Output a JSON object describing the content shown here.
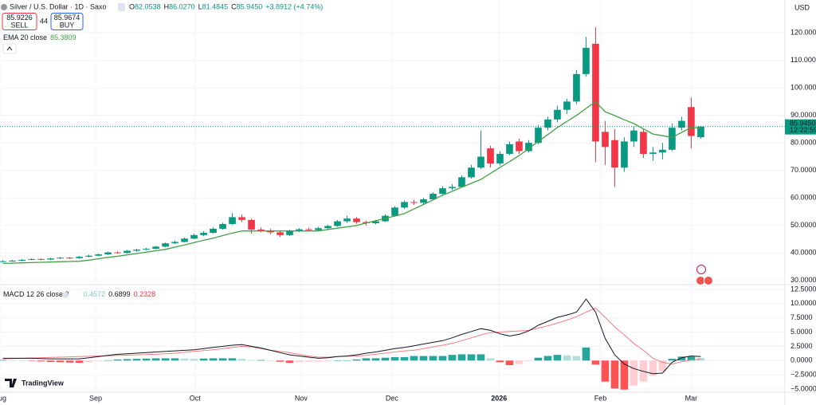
{
  "chart_data": [
    {
      "type": "candlestick",
      "title": "Silver / U.S. Dollar · 1D · Saxo",
      "ohlc_header": [
        "O",
        "82.0538",
        "H",
        "86.0270",
        "L",
        "81.4845",
        "C",
        "85.9450",
        "+3.8912 (+4.74%)"
      ],
      "sell": {
        "price": "85.9226",
        "label": "SELL"
      },
      "spread": "44",
      "buy": {
        "price": "85.9674",
        "label": "BUY"
      },
      "currency": "USD",
      "last_price_label": "85.9450",
      "countdown": "12:22:59",
      "up_color": "#089981",
      "down_color": "#f23645",
      "ylim": [
        28.5,
        131.9
      ],
      "yticks": [
        {
          "value": 30,
          "label": "30.0000"
        },
        {
          "value": 40,
          "label": "40.0000"
        },
        {
          "value": 50,
          "label": "50.0000"
        },
        {
          "value": 60,
          "label": "60.0000"
        },
        {
          "value": 70,
          "label": "70.0000"
        },
        {
          "value": 80,
          "label": "80.0000"
        },
        {
          "value": 90,
          "label": "90.0000"
        },
        {
          "value": 100,
          "label": "100.0000"
        },
        {
          "value": 110,
          "label": "110.0000"
        },
        {
          "value": 120,
          "label": "120.0000"
        }
      ],
      "grid": true,
      "open": [
        36.8,
        37.0,
        37.2,
        37.5,
        37.8,
        37.6,
        38.0,
        38.3,
        38.1,
        38.6,
        39.0,
        39.5,
        40.2,
        40.0,
        40.8,
        41.2,
        41.5,
        42.3,
        43.5,
        44.0,
        45.2,
        46.5,
        47.3,
        48.8,
        50.5,
        53.0,
        52.0,
        48.5,
        48.2,
        47.5,
        46.5,
        48.0,
        48.6,
        48.3,
        49.0,
        49.8,
        51.5,
        52.5,
        51.2,
        50.8,
        51.5,
        53.5,
        56.5,
        58.5,
        58.2,
        59.5,
        61.5,
        63.5,
        64.0,
        67.5,
        71.0,
        78.0,
        72.5,
        76.0,
        80.5,
        77.0,
        80.0,
        85.5,
        88.5,
        92.0,
        95.0,
        105.0,
        116.0,
        84.0,
        81.0,
        71.0,
        80.5,
        84.0,
        76.0,
        76.5,
        77.5,
        85.5,
        93.0,
        82.0538
      ],
      "high": [
        37.4,
        37.5,
        37.8,
        38.1,
        38.0,
        38.3,
        38.6,
        38.5,
        38.9,
        39.4,
        39.8,
        40.5,
        40.6,
        41.1,
        41.6,
        41.9,
        42.6,
        43.8,
        44.5,
        45.6,
        47.0,
        47.9,
        49.3,
        51.0,
        54.5,
        54.0,
        52.5,
        49.3,
        48.8,
        48.0,
        48.4,
        49.0,
        49.2,
        49.5,
        50.2,
        52.0,
        53.5,
        53.0,
        51.7,
        52.0,
        54.0,
        57.0,
        59.0,
        59.3,
        60.0,
        62.0,
        64.3,
        65.0,
        68.2,
        72.0,
        84.5,
        79.0,
        77.0,
        80.5,
        81.5,
        81.0,
        86.5,
        89.5,
        93.5,
        96.0,
        106.5,
        118.5,
        122.0,
        88.0,
        85.0,
        82.0,
        86.0,
        85.0,
        78.5,
        80.0,
        87.0,
        89.5,
        96.5,
        86.027
      ],
      "low": [
        36.6,
        36.8,
        37.0,
        37.3,
        37.3,
        37.4,
        37.8,
        37.8,
        37.9,
        38.4,
        38.8,
        39.3,
        39.7,
        39.8,
        40.5,
        41.0,
        41.3,
        42.0,
        43.2,
        43.8,
        45.0,
        46.1,
        47.0,
        48.5,
        50.2,
        51.2,
        47.0,
        47.5,
        46.8,
        45.8,
        46.2,
        47.6,
        47.8,
        48.0,
        48.7,
        49.5,
        51.0,
        50.6,
        50.0,
        50.4,
        51.2,
        53.2,
        56.0,
        57.5,
        57.8,
        59.2,
        61.0,
        62.8,
        63.7,
        67.0,
        70.5,
        71.0,
        71.8,
        75.5,
        76.0,
        76.5,
        79.5,
        84.5,
        87.5,
        90.5,
        94.0,
        104.0,
        73.0,
        72.0,
        64.0,
        69.5,
        78.5,
        74.5,
        73.5,
        74.0,
        77.0,
        84.5,
        78.0,
        81.4845
      ],
      "close": [
        37.0,
        37.2,
        37.5,
        37.8,
        37.6,
        38.0,
        38.3,
        38.1,
        38.6,
        39.0,
        39.5,
        40.2,
        40.0,
        40.8,
        41.2,
        41.5,
        42.3,
        43.5,
        44.0,
        45.2,
        46.5,
        47.3,
        48.8,
        50.5,
        53.0,
        52.0,
        48.5,
        48.2,
        47.5,
        46.5,
        48.0,
        48.6,
        48.3,
        49.0,
        49.8,
        51.5,
        52.5,
        51.2,
        50.8,
        51.5,
        53.5,
        56.5,
        58.5,
        58.2,
        59.5,
        61.5,
        63.5,
        64.0,
        67.5,
        71.0,
        75.0,
        72.5,
        76.0,
        79.5,
        77.0,
        80.0,
        85.5,
        88.5,
        92.0,
        95.0,
        105.0,
        114.5,
        80.5,
        78.5,
        71.0,
        80.5,
        84.5,
        76.0,
        76.5,
        77.5,
        85.5,
        88.0,
        82.5,
        85.945
      ],
      "ema": {
        "name": "EMA 20 close",
        "color": "#43a047",
        "values": [
          36.2,
          36.3,
          36.4,
          36.5,
          36.6,
          36.7,
          36.8,
          36.9,
          37.0,
          37.4,
          37.9,
          38.4,
          38.8,
          39.3,
          39.8,
          40.3,
          40.8,
          41.3,
          42.1,
          42.9,
          43.8,
          44.6,
          45.4,
          46.3,
          47.2,
          48.0,
          48.0,
          48.0,
          48.0,
          48.0,
          48.0,
          48.0,
          48.0,
          48.0,
          48.5,
          49.0,
          49.5,
          50.0,
          50.9,
          51.7,
          52.6,
          53.4,
          54.3,
          56.0,
          57.6,
          59.3,
          61.0,
          62.4,
          63.9,
          65.3,
          66.7,
          68.9,
          71.1,
          73.2,
          75.4,
          77.9,
          80.5,
          83.0,
          85.6,
          87.8,
          90.0,
          92.5,
          95.0,
          91.3,
          89.9,
          88.4,
          87.0,
          85.1,
          83.2,
          82.6,
          82.0,
          83.8,
          85.6,
          85.3809
        ]
      }
    },
    {
      "type": "macd",
      "title": "MACD 12 26 close 9",
      "logo": "TradingView",
      "xlim": [
        -0.3,
        81.8
      ],
      "xticks": [
        {
          "value": -0.3,
          "label": "Aug"
        },
        {
          "value": 9.7,
          "label": "Sep"
        },
        {
          "value": 20.1,
          "label": "Oct"
        },
        {
          "value": 31.2,
          "label": "Nov"
        },
        {
          "value": 40.7,
          "label": "Dec"
        },
        {
          "value": 51.9,
          "label": "2026"
        },
        {
          "value": 62.5,
          "label": "Feb"
        },
        {
          "value": 72.0,
          "label": "Mar"
        }
      ],
      "ylim": [
        -5.56,
        13.33
      ],
      "yticks": [
        {
          "value": -5,
          "label": "−5.0000"
        },
        {
          "value": -2.5,
          "label": "−2.5000"
        },
        {
          "value": 0,
          "label": "0.0000"
        },
        {
          "value": 2.5,
          "label": "2.5000"
        },
        {
          "value": 5,
          "label": "5.0000"
        },
        {
          "value": 7.5,
          "label": "7.5000"
        },
        {
          "value": 10,
          "label": "10.0000"
        },
        {
          "value": 12.5,
          "label": "12.5000"
        }
      ],
      "histogram": {
        "colors": [
          "#26a69a",
          "#b2dfdb",
          "#ff5252",
          "#ffcdd2"
        ],
        "values": [
          0.1,
          0.05,
          0,
          -0.05,
          -0.15,
          -0.25,
          -0.3,
          -0.35,
          -0.4,
          -0.25,
          -0.1,
          0.05,
          0.2,
          0.25,
          0.3,
          0.35,
          0.4,
          0.4,
          0.4,
          0.35,
          0.3,
          0.35,
          0.4,
          0.4,
          0.4,
          0.3,
          0.1,
          0.1,
          0,
          -0.2,
          -0.4,
          -0.3,
          -0.2,
          -0.2,
          -0.1,
          0,
          0.05,
          0.2,
          0.4,
          0.4,
          0.5,
          0.6,
          0.6,
          0.8,
          0.8,
          0.8,
          0.8,
          1.0,
          1.1,
          1.1,
          1.1,
          0.4,
          -0.3,
          -0.8,
          -0.6,
          -0.1,
          0.5,
          0.8,
          1.0,
          0.9,
          0.8,
          2.3,
          -0.7,
          -3.7,
          -4.9,
          -5.1,
          -4.4,
          -3.7,
          -2.7,
          -1.9,
          0.3,
          0.7,
          0.7,
          0.4572
        ]
      },
      "macd": {
        "color": "#131722",
        "values": [
          0.4,
          0.4,
          0.4,
          0.4,
          0.35,
          0.3,
          0.3,
          0.3,
          0.3,
          0.5,
          0.7,
          0.9,
          1.1,
          1.2,
          1.3,
          1.4,
          1.5,
          1.6,
          1.7,
          1.8,
          1.9,
          2.1,
          2.3,
          2.5,
          2.7,
          2.8,
          2.5,
          2.2,
          1.8,
          1.4,
          1.0,
          0.8,
          0.6,
          0.4,
          0.5,
          0.7,
          0.8,
          1.0,
          1.3,
          1.5,
          1.8,
          2.1,
          2.3,
          2.6,
          2.9,
          3.2,
          3.5,
          4.0,
          4.6,
          5.1,
          5.6,
          5.3,
          4.7,
          4.3,
          4.6,
          5.2,
          6.2,
          6.9,
          7.6,
          8.0,
          8.5,
          10.8,
          8.5,
          3.9,
          1.0,
          -0.6,
          -1.4,
          -1.9,
          -2.3,
          -2.2,
          -0.3,
          0.5,
          0.8,
          0.6899
        ]
      },
      "signal": {
        "color": "#f77c80",
        "values": [
          0.3,
          0.35,
          0.4,
          0.45,
          0.5,
          0.55,
          0.6,
          0.65,
          0.7,
          0.75,
          0.8,
          0.85,
          0.9,
          0.95,
          1.0,
          1.05,
          1.1,
          1.2,
          1.3,
          1.45,
          1.6,
          1.75,
          1.9,
          2.1,
          2.3,
          2.5,
          2.4,
          2.1,
          1.8,
          1.6,
          1.4,
          1.1,
          0.8,
          0.6,
          0.6,
          0.7,
          0.75,
          0.8,
          0.9,
          1.1,
          1.3,
          1.5,
          1.7,
          1.8,
          2.1,
          2.4,
          2.7,
          3.0,
          3.5,
          4.0,
          4.5,
          4.9,
          5.0,
          5.1,
          5.2,
          5.3,
          5.7,
          6.1,
          6.6,
          7.1,
          7.7,
          8.5,
          9.2,
          7.6,
          5.9,
          4.5,
          3.0,
          1.8,
          0.4,
          -0.3,
          -0.6,
          -0.2,
          0.1,
          0.2328
        ]
      }
    }
  ]
}
